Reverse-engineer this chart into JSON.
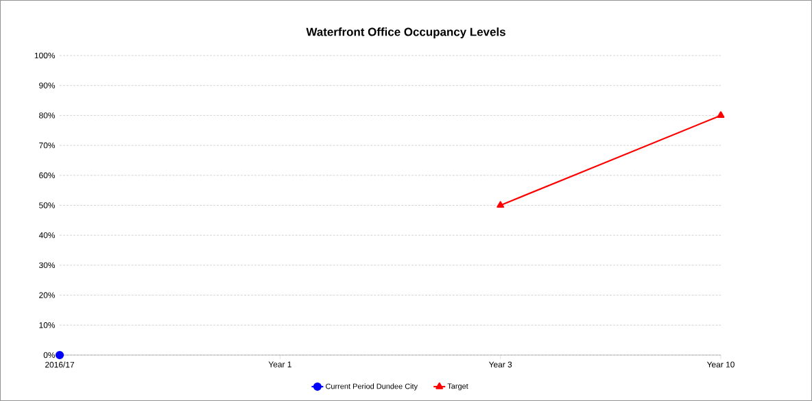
{
  "chart_data": {
    "type": "line",
    "title": "Waterfront Office Occupancy  Levels",
    "categories": [
      "2016/17",
      "Year 1",
      "Year 3",
      "Year 10"
    ],
    "series": [
      {
        "name": "Current Period Dundee City",
        "color": "#0000ff",
        "marker": "circle",
        "values": [
          0,
          null,
          null,
          null
        ]
      },
      {
        "name": "Target",
        "color": "#ff0000",
        "marker": "triangle",
        "values": [
          null,
          null,
          50,
          80
        ]
      }
    ],
    "ylim": [
      0,
      100
    ],
    "yticks": [
      {
        "value": 0,
        "label": "0%"
      },
      {
        "value": 10,
        "label": "10%"
      },
      {
        "value": 20,
        "label": "20%"
      },
      {
        "value": 30,
        "label": "30%"
      },
      {
        "value": 40,
        "label": "40%"
      },
      {
        "value": 50,
        "label": "50%"
      },
      {
        "value": 60,
        "label": "60%"
      },
      {
        "value": 70,
        "label": "70%"
      },
      {
        "value": 80,
        "label": "80%"
      },
      {
        "value": 90,
        "label": "90%"
      },
      {
        "value": 100,
        "label": "100%"
      }
    ],
    "grid": "y",
    "legend": "bottom"
  }
}
